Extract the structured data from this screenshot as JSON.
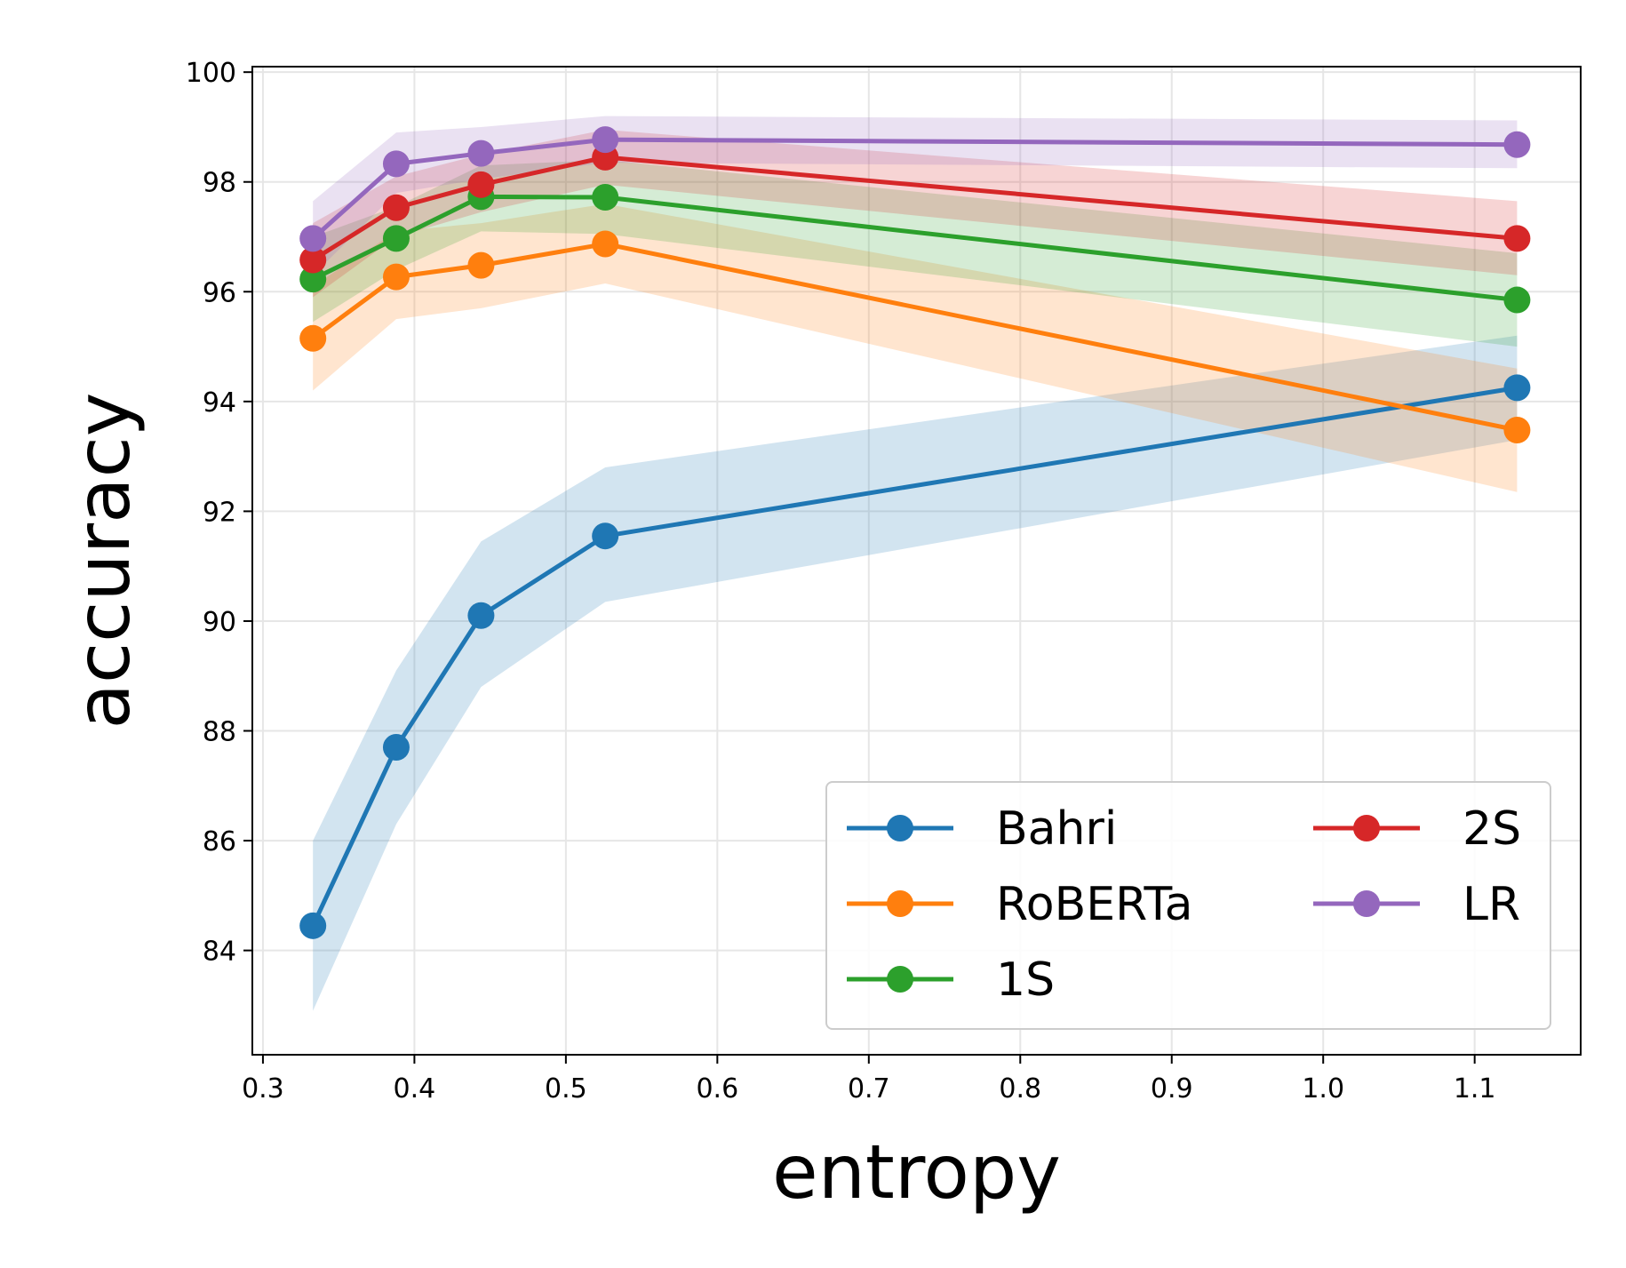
{
  "chart_data": {
    "type": "line",
    "title": "",
    "xlabel": "entropy",
    "ylabel": "accuracy",
    "xlim": [
      0.293,
      1.17
    ],
    "ylim": [
      82.1,
      100.1
    ],
    "xticks": [
      0.3,
      0.4,
      0.5,
      0.6,
      0.7,
      0.8,
      0.9,
      1.0,
      1.1
    ],
    "xtick_labels": [
      "0.3",
      "0.4",
      "0.5",
      "0.6",
      "0.7",
      "0.8",
      "0.9",
      "1.0",
      "1.1"
    ],
    "yticks": [
      84,
      86,
      88,
      90,
      92,
      94,
      96,
      98,
      100
    ],
    "ytick_labels": [
      "84",
      "86",
      "88",
      "90",
      "92",
      "94",
      "96",
      "98",
      "100"
    ],
    "grid": true,
    "legend_position": "bottom-right",
    "x": [
      0.333,
      0.388,
      0.444,
      0.526,
      1.128
    ],
    "series": [
      {
        "name": "Bahri",
        "color": "#1f77b4",
        "fill": "#c6dbef",
        "values": [
          84.45,
          87.7,
          90.1,
          91.55,
          94.25
        ],
        "lower": [
          82.9,
          86.3,
          88.8,
          90.35,
          93.3
        ],
        "upper": [
          86.0,
          89.1,
          91.45,
          92.8,
          95.2
        ]
      },
      {
        "name": "RoBERTa",
        "color": "#ff7f0e",
        "fill": "#fdd0a2",
        "values": [
          95.15,
          96.27,
          96.48,
          96.87,
          93.48
        ],
        "lower": [
          94.2,
          95.5,
          95.7,
          96.15,
          92.35
        ],
        "upper": [
          96.1,
          97.1,
          97.25,
          97.6,
          94.6
        ]
      },
      {
        "name": "1S",
        "color": "#2ca02c",
        "fill": "#c7e9c0",
        "values": [
          96.23,
          96.97,
          97.73,
          97.72,
          95.85
        ],
        "lower": [
          95.45,
          96.4,
          97.1,
          97.05,
          95.0
        ],
        "upper": [
          97.0,
          97.55,
          98.3,
          98.4,
          96.7
        ]
      },
      {
        "name": "2S",
        "color": "#d62728",
        "fill": "#f4b6b6",
        "values": [
          96.58,
          97.53,
          97.95,
          98.45,
          96.97
        ],
        "lower": [
          95.9,
          97.0,
          97.45,
          97.95,
          96.3
        ],
        "upper": [
          97.25,
          98.1,
          98.5,
          98.95,
          97.65
        ]
      },
      {
        "name": "LR",
        "color": "#9467bd",
        "fill": "#dccbe6",
        "values": [
          96.97,
          98.33,
          98.52,
          98.77,
          98.68
        ],
        "lower": [
          96.3,
          97.8,
          98.05,
          98.35,
          98.25
        ],
        "upper": [
          97.65,
          98.9,
          99.0,
          99.2,
          99.12
        ]
      }
    ]
  }
}
